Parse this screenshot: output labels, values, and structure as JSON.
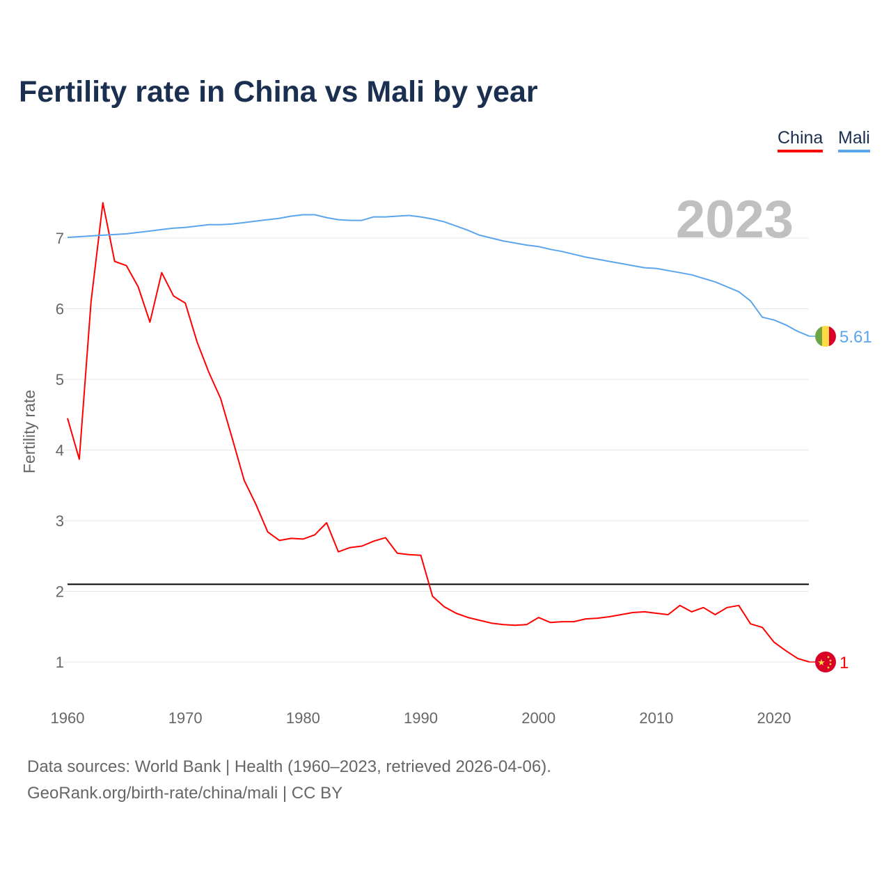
{
  "title": "Fertility rate in China vs Mali by year",
  "footer": {
    "line1": "Data sources: World Bank | Health (1960–2023, retrieved 2026-04-06).",
    "line2": "GeoRank.org/birth-rate/china/mali | CC BY"
  },
  "chart_data": {
    "type": "line",
    "title": "Fertility rate in China vs Mali by year",
    "xlabel": "",
    "ylabel": "Fertility rate",
    "year_label": "2023",
    "xlim": [
      1960,
      2023
    ],
    "ylim": [
      0.4,
      7.9
    ],
    "x_ticks": [
      1960,
      1970,
      1980,
      1990,
      2000,
      2010,
      2020
    ],
    "y_ticks": [
      1,
      2,
      3,
      4,
      5,
      6,
      7
    ],
    "grid": true,
    "legend_placement": "top-right",
    "reference_line": {
      "value": 2.1,
      "color": "#000000"
    },
    "x": [
      1960,
      1961,
      1962,
      1963,
      1964,
      1965,
      1966,
      1967,
      1968,
      1969,
      1970,
      1971,
      1972,
      1973,
      1974,
      1975,
      1976,
      1977,
      1978,
      1979,
      1980,
      1981,
      1982,
      1983,
      1984,
      1985,
      1986,
      1987,
      1988,
      1989,
      1990,
      1991,
      1992,
      1993,
      1994,
      1995,
      1996,
      1997,
      1998,
      1999,
      2000,
      2001,
      2002,
      2003,
      2004,
      2005,
      2006,
      2007,
      2008,
      2009,
      2010,
      2011,
      2012,
      2013,
      2014,
      2015,
      2016,
      2017,
      2018,
      2019,
      2020,
      2021,
      2022,
      2023
    ],
    "series": [
      {
        "name": "China",
        "color": "#ff0000",
        "end_label": "1",
        "flag": "china-flag",
        "values": [
          4.45,
          3.87,
          6.1,
          7.5,
          6.67,
          6.61,
          6.31,
          5.81,
          6.51,
          6.18,
          6.08,
          5.53,
          5.1,
          4.73,
          4.16,
          3.57,
          3.23,
          2.84,
          2.72,
          2.75,
          2.74,
          2.8,
          2.97,
          2.56,
          2.62,
          2.64,
          2.71,
          2.76,
          2.54,
          2.52,
          2.51,
          1.93,
          1.78,
          1.69,
          1.63,
          1.59,
          1.55,
          1.53,
          1.52,
          1.53,
          1.63,
          1.56,
          1.57,
          1.57,
          1.61,
          1.62,
          1.64,
          1.67,
          1.7,
          1.71,
          1.69,
          1.67,
          1.8,
          1.71,
          1.77,
          1.67,
          1.77,
          1.8,
          1.54,
          1.49,
          1.28,
          1.16,
          1.05,
          1.0
        ]
      },
      {
        "name": "Mali",
        "color": "#5aa5ec",
        "end_label": "5.61",
        "flag": "mali-flag",
        "values": [
          7.01,
          7.02,
          7.03,
          7.04,
          7.05,
          7.06,
          7.08,
          7.1,
          7.12,
          7.14,
          7.15,
          7.17,
          7.19,
          7.19,
          7.2,
          7.22,
          7.24,
          7.26,
          7.28,
          7.31,
          7.33,
          7.33,
          7.29,
          7.26,
          7.25,
          7.25,
          7.3,
          7.3,
          7.31,
          7.32,
          7.3,
          7.27,
          7.23,
          7.17,
          7.11,
          7.04,
          7.0,
          6.96,
          6.93,
          6.9,
          6.88,
          6.84,
          6.81,
          6.77,
          6.73,
          6.7,
          6.67,
          6.64,
          6.61,
          6.58,
          6.57,
          6.54,
          6.51,
          6.48,
          6.43,
          6.38,
          6.31,
          6.24,
          6.11,
          5.88,
          5.84,
          5.77,
          5.68,
          5.61
        ]
      }
    ]
  }
}
